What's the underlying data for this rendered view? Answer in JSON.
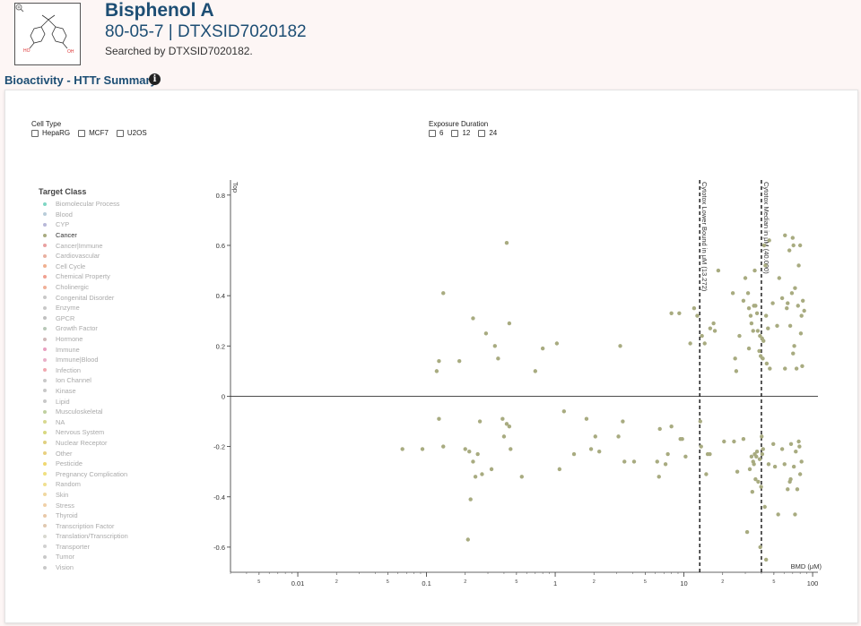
{
  "header": {
    "name": "Bisphenol A",
    "ids": "80-05-7 | DTXSID7020182",
    "searched": "Searched by DTXSID7020182.",
    "structure_labels": [
      "HO",
      "OH"
    ]
  },
  "section": {
    "title": "Bioactivity - HTTr Summary",
    "info_icon": "i"
  },
  "filters": {
    "cell_type": {
      "title": "Cell Type",
      "options": [
        "HepaRG",
        "MCF7",
        "U2OS"
      ]
    },
    "exposure": {
      "title": "Exposure Duration",
      "options": [
        "6",
        "12",
        "24"
      ]
    }
  },
  "legend": {
    "title": "Target Class",
    "items": [
      {
        "label": "Biomolecular Process",
        "color": "#7fd6c4",
        "active": false
      },
      {
        "label": "Blood",
        "color": "#b9cdd9",
        "active": false
      },
      {
        "label": "CYP",
        "color": "#b8b8d8",
        "active": false
      },
      {
        "label": "Cancer",
        "color": "#a8ab80",
        "active": true
      },
      {
        "label": "Cancer|Immune",
        "color": "#e8a0a0",
        "active": false
      },
      {
        "label": "Cardiovascular",
        "color": "#e8b0a0",
        "active": false
      },
      {
        "label": "Cell Cycle",
        "color": "#f0b090",
        "active": false
      },
      {
        "label": "Chemical Property",
        "color": "#f0a090",
        "active": false
      },
      {
        "label": "Cholinergic",
        "color": "#f0b098",
        "active": false
      },
      {
        "label": "Congenital Disorder",
        "color": "#c8c8c8",
        "active": false
      },
      {
        "label": "Enzyme",
        "color": "#c8c8c8",
        "active": false
      },
      {
        "label": "GPCR",
        "color": "#c0c0c0",
        "active": false
      },
      {
        "label": "Growth Factor",
        "color": "#b8c8b8",
        "active": false
      },
      {
        "label": "Hormone",
        "color": "#d0b8b8",
        "active": false
      },
      {
        "label": "Immune",
        "color": "#e8a0c0",
        "active": false
      },
      {
        "label": "Immune|Blood",
        "color": "#e8b0c8",
        "active": false
      },
      {
        "label": "Infection",
        "color": "#f0a8b0",
        "active": false
      },
      {
        "label": "Ion Channel",
        "color": "#c8c8c8",
        "active": false
      },
      {
        "label": "Kinase",
        "color": "#c8c8c8",
        "active": false
      },
      {
        "label": "Lipid",
        "color": "#c8c8c8",
        "active": false
      },
      {
        "label": "Musculoskeletal",
        "color": "#c0d0a0",
        "active": false
      },
      {
        "label": "NA",
        "color": "#d8d890",
        "active": false
      },
      {
        "label": "Nervous System",
        "color": "#d8d880",
        "active": false
      },
      {
        "label": "Nuclear Receptor",
        "color": "#e0d080",
        "active": false
      },
      {
        "label": "Other",
        "color": "#e8d080",
        "active": false
      },
      {
        "label": "Pesticide",
        "color": "#f0d870",
        "active": false
      },
      {
        "label": "Pregnancy Complication",
        "color": "#f0e080",
        "active": false
      },
      {
        "label": "Random",
        "color": "#f0e090",
        "active": false
      },
      {
        "label": "Skin",
        "color": "#f0d8a0",
        "active": false
      },
      {
        "label": "Stress",
        "color": "#f0d0a8",
        "active": false
      },
      {
        "label": "Thyroid",
        "color": "#e8c8a8",
        "active": false
      },
      {
        "label": "Transcription Factor",
        "color": "#e0c8b0",
        "active": false
      },
      {
        "label": "Translation/Transcription",
        "color": "#d8d8d0",
        "active": false
      },
      {
        "label": "Transporter",
        "color": "#d0d0d0",
        "active": false
      },
      {
        "label": "Tumor",
        "color": "#c8c8c8",
        "active": false
      },
      {
        "label": "Vision",
        "color": "#c8c8c8",
        "active": false
      }
    ]
  },
  "chart_data": {
    "type": "scatter",
    "xlabel": "BMD (μM)",
    "ylabel": "Top",
    "xscale": "log",
    "xlim": [
      0.003,
      110
    ],
    "ylim": [
      -0.7,
      0.86
    ],
    "yticks": [
      0.8,
      0.6,
      0.4,
      0.2,
      0,
      -0.2,
      -0.4,
      -0.6
    ],
    "xticks_major": [
      {
        "v": 0.01,
        "label": "0.01"
      },
      {
        "v": 0.1,
        "label": "0.1"
      },
      {
        "v": 1,
        "label": "1"
      },
      {
        "v": 10,
        "label": "10"
      },
      {
        "v": 100,
        "label": "100"
      }
    ],
    "xticks_minor": [
      {
        "v": 0.005,
        "label": "5"
      },
      {
        "v": 0.02,
        "label": "2"
      },
      {
        "v": 0.05,
        "label": "5"
      },
      {
        "v": 0.2,
        "label": "2"
      },
      {
        "v": 0.5,
        "label": "5"
      },
      {
        "v": 2,
        "label": "2"
      },
      {
        "v": 5,
        "label": "5"
      },
      {
        "v": 20,
        "label": "2"
      },
      {
        "v": 50,
        "label": "5"
      }
    ],
    "point_color": "#a8ab80",
    "vlines": [
      {
        "x": 13.272,
        "label": "Cytotox Lower Bound in μM (13.272)"
      },
      {
        "x": 40.0,
        "label": "Cytotox Median in μM (40.000)"
      }
    ],
    "points": [
      [
        0.12,
        0.1
      ],
      [
        0.125,
        0.14
      ],
      [
        0.135,
        0.41
      ],
      [
        0.18,
        0.14
      ],
      [
        0.23,
        0.31
      ],
      [
        0.29,
        0.25
      ],
      [
        0.34,
        0.2
      ],
      [
        0.36,
        0.15
      ],
      [
        0.42,
        0.61
      ],
      [
        0.44,
        0.29
      ],
      [
        0.7,
        0.1
      ],
      [
        0.8,
        0.19
      ],
      [
        1.03,
        0.21
      ],
      [
        3.2,
        0.2
      ],
      [
        8.0,
        0.33
      ],
      [
        9.2,
        0.33
      ],
      [
        11.2,
        0.21
      ],
      [
        12.0,
        0.35
      ],
      [
        12.7,
        0.32
      ],
      [
        13.8,
        0.24
      ],
      [
        14.5,
        0.21
      ],
      [
        16.0,
        0.27
      ],
      [
        17.0,
        0.29
      ],
      [
        17.4,
        0.26
      ],
      [
        18.5,
        0.5
      ],
      [
        24.0,
        0.41
      ],
      [
        25.0,
        0.15
      ],
      [
        25.5,
        0.1
      ],
      [
        27.0,
        0.24
      ],
      [
        29.0,
        0.38
      ],
      [
        30.0,
        0.47
      ],
      [
        31.5,
        0.41
      ],
      [
        32.0,
        0.35
      ],
      [
        32.0,
        0.19
      ],
      [
        33.0,
        0.32
      ],
      [
        33.5,
        0.29
      ],
      [
        34.5,
        0.26
      ],
      [
        35.0,
        0.36
      ],
      [
        35.5,
        0.5
      ],
      [
        36.0,
        0.36
      ],
      [
        37.0,
        0.33
      ],
      [
        37.5,
        0.26
      ],
      [
        38.5,
        0.18
      ],
      [
        39.0,
        0.24
      ],
      [
        39.5,
        0.16
      ],
      [
        40.5,
        0.23
      ],
      [
        41.0,
        0.15
      ],
      [
        41.5,
        0.22
      ],
      [
        42.0,
        0.6
      ],
      [
        43.0,
        0.52
      ],
      [
        43.5,
        0.32
      ],
      [
        44.0,
        0.13
      ],
      [
        45.0,
        0.27
      ],
      [
        46.0,
        0.62
      ],
      [
        46.5,
        0.11
      ],
      [
        49.0,
        0.37
      ],
      [
        53.0,
        0.28
      ],
      [
        55.0,
        0.47
      ],
      [
        58.0,
        0.39
      ],
      [
        61.0,
        0.64
      ],
      [
        61.0,
        0.11
      ],
      [
        63.0,
        0.35
      ],
      [
        64.0,
        0.37
      ],
      [
        66.0,
        0.58
      ],
      [
        67.0,
        0.28
      ],
      [
        69.0,
        0.41
      ],
      [
        70.0,
        0.63
      ],
      [
        70.5,
        0.17
      ],
      [
        71.0,
        0.6
      ],
      [
        72.0,
        0.2
      ],
      [
        73.0,
        0.43
      ],
      [
        75.0,
        0.11
      ],
      [
        77.0,
        0.36
      ],
      [
        78.0,
        0.52
      ],
      [
        80.0,
        0.6
      ],
      [
        81.0,
        0.25
      ],
      [
        82.0,
        0.32
      ],
      [
        83.0,
        0.12
      ],
      [
        84.0,
        0.38
      ],
      [
        86.0,
        0.34
      ],
      [
        0.065,
        -0.21
      ],
      [
        0.093,
        -0.21
      ],
      [
        0.125,
        -0.09
      ],
      [
        0.135,
        -0.2
      ],
      [
        0.2,
        -0.21
      ],
      [
        0.21,
        -0.57
      ],
      [
        0.215,
        -0.22
      ],
      [
        0.22,
        -0.41
      ],
      [
        0.23,
        -0.26
      ],
      [
        0.24,
        -0.32
      ],
      [
        0.25,
        -0.23
      ],
      [
        0.26,
        -0.1
      ],
      [
        0.27,
        -0.31
      ],
      [
        0.32,
        -0.29
      ],
      [
        0.39,
        -0.09
      ],
      [
        0.4,
        -0.16
      ],
      [
        0.42,
        -0.11
      ],
      [
        0.44,
        -0.12
      ],
      [
        0.45,
        -0.21
      ],
      [
        0.55,
        -0.32
      ],
      [
        1.08,
        -0.29
      ],
      [
        1.17,
        -0.06
      ],
      [
        1.4,
        -0.23
      ],
      [
        1.75,
        -0.09
      ],
      [
        1.9,
        -0.21
      ],
      [
        2.05,
        -0.16
      ],
      [
        2.2,
        -0.22
      ],
      [
        3.1,
        -0.16
      ],
      [
        3.35,
        -0.1
      ],
      [
        3.45,
        -0.26
      ],
      [
        4.1,
        -0.26
      ],
      [
        6.2,
        -0.26
      ],
      [
        6.4,
        -0.32
      ],
      [
        6.5,
        -0.13
      ],
      [
        7.2,
        -0.27
      ],
      [
        7.5,
        -0.23
      ],
      [
        8.0,
        -0.12
      ],
      [
        9.4,
        -0.17
      ],
      [
        9.7,
        -0.17
      ],
      [
        10.3,
        -0.24
      ],
      [
        13.4,
        -0.1
      ],
      [
        13.6,
        -0.2
      ],
      [
        14.9,
        -0.31
      ],
      [
        15.3,
        -0.23
      ],
      [
        15.9,
        -0.23
      ],
      [
        20.5,
        -0.18
      ],
      [
        24.5,
        -0.18
      ],
      [
        26.0,
        -0.3
      ],
      [
        29.0,
        -0.17
      ],
      [
        31.0,
        -0.54
      ],
      [
        32.5,
        -0.29
      ],
      [
        33.5,
        -0.24
      ],
      [
        34.0,
        -0.38
      ],
      [
        34.5,
        -0.26
      ],
      [
        35.0,
        -0.27
      ],
      [
        35.5,
        -0.23
      ],
      [
        36.0,
        -0.33
      ],
      [
        36.5,
        -0.24
      ],
      [
        37.0,
        -0.22
      ],
      [
        37.8,
        -0.34
      ],
      [
        38.8,
        -0.25
      ],
      [
        39.2,
        -0.6
      ],
      [
        39.8,
        -0.36
      ],
      [
        40.2,
        -0.16
      ],
      [
        40.6,
        -0.23
      ],
      [
        41.2,
        -0.21
      ],
      [
        42.5,
        -0.44
      ],
      [
        43.5,
        -0.65
      ],
      [
        45.5,
        -0.27
      ],
      [
        49.5,
        -0.19
      ],
      [
        51.0,
        -0.28
      ],
      [
        54.0,
        -0.47
      ],
      [
        58.0,
        -0.21
      ],
      [
        60.5,
        -0.27
      ],
      [
        64.0,
        -0.37
      ],
      [
        66.5,
        -0.34
      ],
      [
        67.5,
        -0.33
      ],
      [
        68.0,
        -0.19
      ],
      [
        71.5,
        -0.28
      ],
      [
        73.0,
        -0.47
      ],
      [
        74.0,
        -0.22
      ],
      [
        76.0,
        -0.37
      ],
      [
        78.0,
        -0.18
      ],
      [
        79.0,
        -0.2
      ],
      [
        80.0,
        -0.31
      ],
      [
        82.0,
        -0.26
      ]
    ]
  }
}
